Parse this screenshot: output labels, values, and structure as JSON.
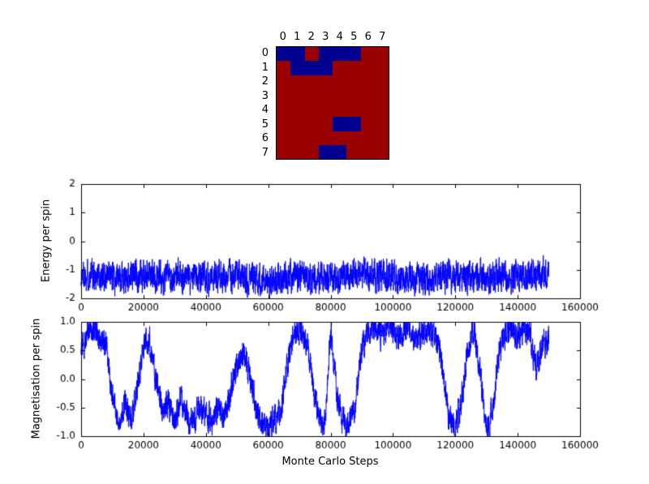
{
  "figure": {
    "background": "#ffffff",
    "line_color": "#0000ff"
  },
  "lattice": {
    "col_labels": [
      "0",
      "1",
      "2",
      "3",
      "4",
      "5",
      "6",
      "7"
    ],
    "row_labels": [
      "0",
      "1",
      "2",
      "3",
      "4",
      "5",
      "6",
      "7"
    ],
    "colors": {
      "spin_up": "#9a0000",
      "spin_down": "#000090"
    },
    "grid": [
      [
        -1,
        -1,
        1,
        -1,
        -1,
        -1,
        1,
        1
      ],
      [
        1,
        -1,
        -1,
        -1,
        1,
        1,
        1,
        1
      ],
      [
        1,
        1,
        1,
        1,
        1,
        1,
        1,
        1
      ],
      [
        1,
        1,
        1,
        1,
        1,
        1,
        1,
        1
      ],
      [
        1,
        1,
        1,
        1,
        1,
        1,
        1,
        1
      ],
      [
        1,
        1,
        1,
        1,
        -1,
        -1,
        1,
        1
      ],
      [
        1,
        1,
        1,
        1,
        1,
        1,
        1,
        1
      ],
      [
        1,
        1,
        1,
        -1,
        -1,
        1,
        1,
        1
      ]
    ]
  },
  "chart_data": [
    {
      "type": "line",
      "title": "",
      "xlabel": "",
      "ylabel": "Energy per spin",
      "xlim": [
        0,
        160000
      ],
      "ylim": [
        -2,
        2
      ],
      "xticks": [
        0,
        20000,
        40000,
        60000,
        80000,
        100000,
        120000,
        140000,
        160000
      ],
      "xtick_labels": [
        "0",
        "20000",
        "40000",
        "60000",
        "80000",
        "100000",
        "120000",
        "140000",
        "160000"
      ],
      "yticks": [
        -2,
        -1,
        0,
        1,
        2
      ],
      "ytick_labels": [
        "-2",
        "-1",
        "0",
        "1",
        "2"
      ],
      "grid": false,
      "legend": null,
      "series": [
        {
          "name": "Energy per spin",
          "color": "#0000ff",
          "x_start": 0,
          "x_end": 150000,
          "envelope_step": 10000,
          "envelope": [
            -1.15,
            -1.25,
            -1.2,
            -1.3,
            -1.2,
            -1.25,
            -1.3,
            -1.2,
            -1.25,
            -1.15,
            -1.2,
            -1.3,
            -1.2,
            -1.25,
            -1.2,
            -1.15
          ],
          "noise_amp": 0.45,
          "noise_persistence": 0.45,
          "clamp": [
            -2,
            -0.05
          ],
          "seed": 1337,
          "points": 3600
        }
      ]
    },
    {
      "type": "line",
      "title": "",
      "xlabel": "Monte Carlo Steps",
      "ylabel": "Magnetisation per spin",
      "xlim": [
        0,
        160000
      ],
      "ylim": [
        -1.0,
        1.0
      ],
      "xticks": [
        0,
        20000,
        40000,
        60000,
        80000,
        100000,
        120000,
        140000,
        160000
      ],
      "xtick_labels": [
        "0",
        "20000",
        "40000",
        "60000",
        "80000",
        "100000",
        "120000",
        "140000",
        "160000"
      ],
      "yticks": [
        -1.0,
        -0.5,
        0.0,
        0.5,
        1.0
      ],
      "ytick_labels": [
        "-1.0",
        "-0.5",
        "0.0",
        "0.5",
        "1.0"
      ],
      "grid": false,
      "legend": null,
      "series": [
        {
          "name": "Magnetisation per spin",
          "color": "#0000ff",
          "x_start": 0,
          "x_end": 150000,
          "envelope_step": 2000,
          "envelope": [
            0.5,
            0.75,
            0.85,
            0.8,
            0.6,
            -0.3,
            -0.8,
            -0.35,
            -0.75,
            -0.2,
            0.6,
            0.65,
            0.0,
            -0.55,
            -0.4,
            -0.75,
            -0.35,
            -0.65,
            -0.8,
            -0.5,
            -0.7,
            -0.75,
            -0.5,
            -0.65,
            -0.2,
            0.25,
            0.45,
            0.1,
            -0.5,
            -0.8,
            -0.85,
            -0.7,
            -0.55,
            0.2,
            0.8,
            0.9,
            0.75,
            0.0,
            -0.7,
            -0.85,
            0.85,
            -0.3,
            -0.75,
            -0.85,
            -0.4,
            0.5,
            0.85,
            0.95,
            0.8,
            0.9,
            0.85,
            0.75,
            0.9,
            0.8,
            0.7,
            0.9,
            0.85,
            0.75,
            0.2,
            -0.7,
            -0.85,
            -0.4,
            0.55,
            0.9,
            0.1,
            -0.9,
            -0.5,
            0.45,
            0.8,
            0.9,
            0.75,
            0.9,
            0.8,
            0.15,
            0.6,
            0.7
          ],
          "noise_amp": 0.2,
          "noise_persistence": 0.5,
          "clamp": [
            -1,
            1
          ],
          "seed": 4242,
          "points": 3600
        }
      ]
    }
  ]
}
